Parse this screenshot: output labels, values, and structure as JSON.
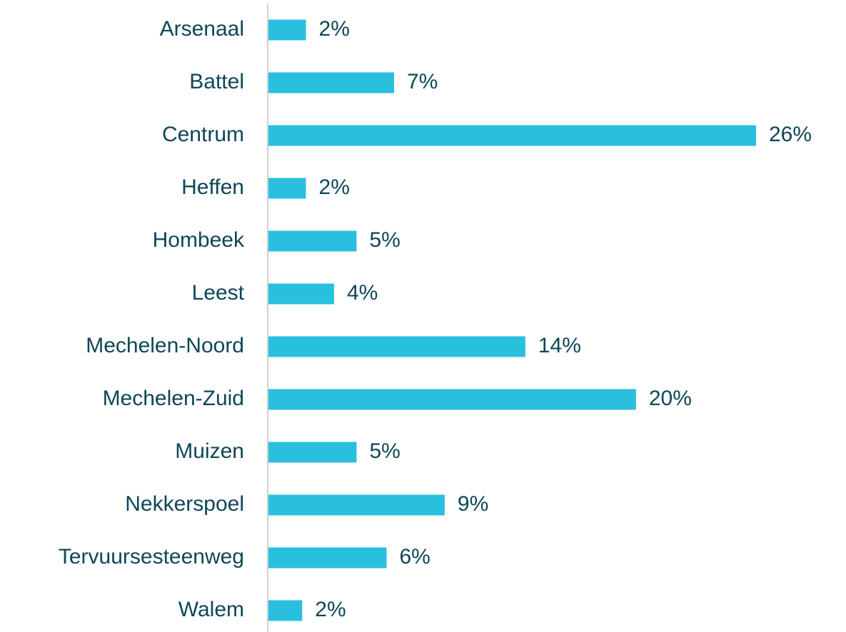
{
  "chart_data": {
    "type": "bar",
    "orientation": "horizontal",
    "categories": [
      "Arsenaal",
      "Battel",
      "Centrum",
      "Heffen",
      "Hombeek",
      "Leest",
      "Mechelen-Noord",
      "Mechelen-Zuid",
      "Muizen",
      "Nekkerspoel",
      "Tervuursesteenweg",
      "Walem"
    ],
    "values": [
      2.0,
      6.7,
      26,
      2.0,
      4.7,
      3.5,
      13.7,
      19.6,
      4.7,
      9.4,
      6.3,
      1.8
    ],
    "value_labels": [
      "2%",
      "7%",
      "26%",
      "2%",
      "5%",
      "4%",
      "14%",
      "20%",
      "5%",
      "9%",
      "6%",
      "2%"
    ],
    "color": "#29c0df"
  }
}
